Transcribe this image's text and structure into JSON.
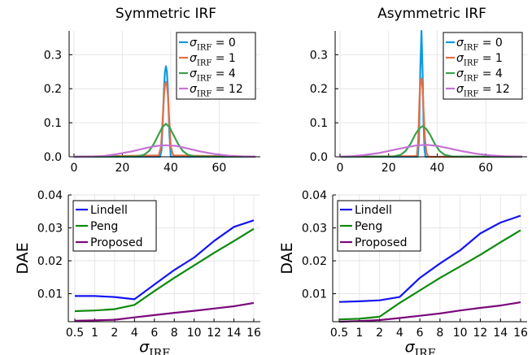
{
  "chart_data": [
    {
      "type": "line",
      "title": "Symmetric IRF",
      "xlim": [
        -2,
        77
      ],
      "ylim": [
        0,
        0.37
      ],
      "xticks": [
        "0",
        "20",
        "40",
        "60"
      ],
      "yticks": [
        "0.0",
        "0.1",
        "0.2",
        "0.3"
      ],
      "grid": true,
      "legend_position": "top-right",
      "series": [
        {
          "name": "σIRF = 0",
          "legend": [
            "σ",
            "IRF",
            " = 0"
          ],
          "color": "#0b9ae3",
          "x": [
            0,
            35.6,
            36.2,
            36.8,
            37.2,
            37.6,
            38.0,
            38.4,
            38.8,
            39.4,
            40.0,
            75
          ],
          "y": [
            0,
            0,
            0.02,
            0.12,
            0.2,
            0.25,
            0.266,
            0.25,
            0.2,
            0.07,
            0,
            0
          ]
        },
        {
          "name": "σIRF = 1",
          "legend": [
            "σ",
            "IRF",
            " = 1"
          ],
          "color": "#e26f46",
          "x": [
            0,
            35.0,
            36.0,
            36.6,
            37.2,
            37.6,
            38.0,
            38.4,
            38.8,
            39.4,
            40.0,
            41.0,
            75
          ],
          "y": [
            0,
            0.004,
            0.03,
            0.1,
            0.18,
            0.21,
            0.22,
            0.21,
            0.18,
            0.1,
            0.03,
            0.004,
            0
          ]
        },
        {
          "name": "σIRF = 4",
          "legend": [
            "σ",
            "IRF",
            " = 4"
          ],
          "color": "#3ca04a",
          "x": [
            0,
            26,
            29,
            31,
            33,
            35,
            36.5,
            38,
            39.5,
            41,
            43,
            45,
            47,
            50,
            75
          ],
          "y": [
            0,
            0.001,
            0.006,
            0.017,
            0.038,
            0.066,
            0.087,
            0.097,
            0.087,
            0.066,
            0.038,
            0.017,
            0.006,
            0.001,
            0
          ]
        },
        {
          "name": "σIRF = 12",
          "legend": [
            "σ",
            "IRF",
            " = 12"
          ],
          "color": "#c472d2",
          "x": [
            0,
            5,
            12,
            18,
            24,
            30,
            34,
            38,
            42,
            46,
            52,
            58,
            64,
            70,
            75
          ],
          "y": [
            0,
            0.0002,
            0.002,
            0.008,
            0.016,
            0.026,
            0.032,
            0.034,
            0.032,
            0.026,
            0.016,
            0.008,
            0.003,
            0.001,
            0.0003
          ]
        }
      ]
    },
    {
      "type": "line",
      "title": "Asymmetric IRF",
      "xlim": [
        -2,
        77
      ],
      "ylim": [
        0,
        0.37
      ],
      "xticks": [
        "0",
        "20",
        "40",
        "60"
      ],
      "yticks": [
        "0.0",
        "0.1",
        "0.2",
        "0.3"
      ],
      "grid": true,
      "legend_position": "top-right",
      "series": [
        {
          "name": "σIRF = 0",
          "legend": [
            "σ",
            "IRF",
            " = 0"
          ],
          "color": "#0b9ae3",
          "x": [
            0,
            32.0,
            32.5,
            33.0,
            33.5,
            34.0,
            34.4,
            34.8,
            35.2,
            75
          ],
          "y": [
            0,
            0,
            0.05,
            0.25,
            0.37,
            0.25,
            0.1,
            0.02,
            0,
            0
          ]
        },
        {
          "name": "σIRF = 1",
          "legend": [
            "σ",
            "IRF",
            " = 1"
          ],
          "color": "#e26f46",
          "x": [
            0,
            31.6,
            32.2,
            32.8,
            33.2,
            33.6,
            34.0,
            34.5,
            35.0,
            35.6,
            36.4,
            75
          ],
          "y": [
            0,
            0.002,
            0.05,
            0.19,
            0.228,
            0.23,
            0.2,
            0.12,
            0.05,
            0.012,
            0,
            0
          ]
        },
        {
          "name": "σIRF = 4",
          "legend": [
            "σ",
            "IRF",
            " = 4"
          ],
          "color": "#3ca04a",
          "x": [
            0,
            22,
            25,
            27,
            29,
            31,
            32.5,
            34,
            35.5,
            37,
            39,
            41,
            43,
            46,
            75
          ],
          "y": [
            0,
            0.001,
            0.006,
            0.017,
            0.038,
            0.066,
            0.082,
            0.09,
            0.082,
            0.066,
            0.038,
            0.017,
            0.006,
            0.001,
            0
          ]
        },
        {
          "name": "σIRF = 12",
          "legend": [
            "σ",
            "IRF",
            " = 12"
          ],
          "color": "#c472d2",
          "x": [
            0,
            5,
            10,
            16,
            22,
            28,
            32,
            36,
            40,
            44,
            50,
            56,
            62,
            68,
            75
          ],
          "y": [
            0.0004,
            0.002,
            0.005,
            0.011,
            0.02,
            0.029,
            0.034,
            0.035,
            0.032,
            0.026,
            0.017,
            0.009,
            0.004,
            0.0015,
            0.0005
          ]
        }
      ]
    },
    {
      "type": "line",
      "xlabel": [
        "σ",
        "IRF"
      ],
      "ylabel": "DAE",
      "xscale": "categorical",
      "categories": [
        "0.5",
        "1",
        "2",
        "4",
        "6",
        "8",
        "10",
        "12",
        "14",
        "16"
      ],
      "ylim": [
        0.0015,
        0.04
      ],
      "yticks": [
        "0.01",
        "0.02",
        "0.03",
        "0.04"
      ],
      "grid": true,
      "legend_position": "top-left",
      "series": [
        {
          "name": "Lindell",
          "color": "#1515f0",
          "values": [
            0.0093,
            0.0093,
            0.009,
            0.0083,
            0.0128,
            0.0172,
            0.021,
            0.026,
            0.0303,
            0.0323
          ]
        },
        {
          "name": "Peng",
          "color": "#0d8a0d",
          "values": [
            0.0047,
            0.0049,
            0.0053,
            0.0066,
            0.0108,
            0.0148,
            0.0186,
            0.0224,
            0.026,
            0.0297
          ]
        },
        {
          "name": "Proposed",
          "color": "#7b0a7b",
          "values": [
            0.0018,
            0.0019,
            0.0021,
            0.0028,
            0.0035,
            0.0042,
            0.0048,
            0.0055,
            0.0062,
            0.0072
          ]
        }
      ]
    },
    {
      "type": "line",
      "xlabel": [
        "σ",
        "IRF"
      ],
      "ylabel": "DAE",
      "xscale": "categorical",
      "categories": [
        "0.5",
        "1",
        "2",
        "4",
        "6",
        "8",
        "10",
        "12",
        "14",
        "16"
      ],
      "ylim": [
        0.0015,
        0.04
      ],
      "yticks": [
        "0.01",
        "0.02",
        "0.03",
        "0.04"
      ],
      "grid": true,
      "legend_position": "top-left",
      "series": [
        {
          "name": "Lindell",
          "color": "#1515f0",
          "values": [
            0.0075,
            0.0077,
            0.008,
            0.009,
            0.0148,
            0.0192,
            0.0232,
            0.0283,
            0.0316,
            0.0337
          ]
        },
        {
          "name": "Peng",
          "color": "#0d8a0d",
          "values": [
            0.0022,
            0.0024,
            0.003,
            0.0072,
            0.011,
            0.0148,
            0.0183,
            0.0218,
            0.0256,
            0.0293
          ]
        },
        {
          "name": "Proposed",
          "color": "#7b0a7b",
          "values": [
            0.0015,
            0.0017,
            0.002,
            0.0026,
            0.0033,
            0.004,
            0.0049,
            0.0057,
            0.0064,
            0.0074
          ]
        }
      ]
    }
  ]
}
